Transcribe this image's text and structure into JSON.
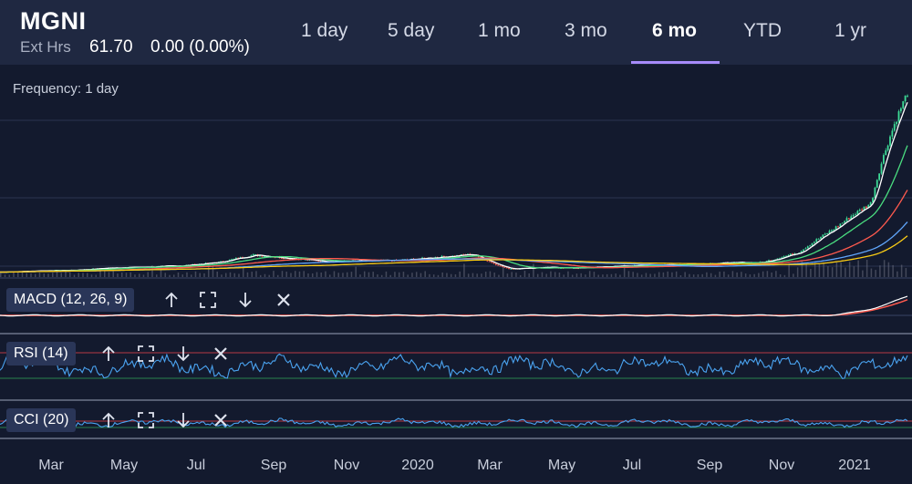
{
  "header": {
    "ticker": "MGNI",
    "ext_label": "Ext Hrs",
    "ext_price": "61.70",
    "ext_change": "0.00 (0.00%)"
  },
  "range_tabs": [
    {
      "label": "1 day"
    },
    {
      "label": "5 day"
    },
    {
      "label": "1 mo"
    },
    {
      "label": "3 mo"
    },
    {
      "label": "6 mo",
      "active": true
    },
    {
      "label": "YTD"
    },
    {
      "label": "1 yr"
    }
  ],
  "frequency_label": "Frequency: 1 day",
  "indicators": {
    "macd": "MACD (12, 26, 9)",
    "rsi": "RSI (14)",
    "cci": "CCI (20)"
  },
  "icons": [
    "arrow-up-icon",
    "expand-icon",
    "arrow-down-icon",
    "close-icon"
  ],
  "colors": {
    "background": "#131a2e",
    "header": "#1f2841",
    "accent": "#a78bfa",
    "up": "#3ddc97",
    "down": "#ff5a4e",
    "indicator_line": "#4aa3f0"
  },
  "chart_data": [
    {
      "type": "candlestick",
      "x_ticks": [
        "Mar",
        "May",
        "Jul",
        "Sep",
        "Nov",
        "2020",
        "Mar",
        "May",
        "Jul",
        "Sep",
        "Nov",
        "2021"
      ],
      "close_series": {
        "x": [
          "2019-01",
          "2019-02",
          "2019-03",
          "2019-04",
          "2019-05",
          "2019-06",
          "2019-07",
          "2019-08",
          "2019-09",
          "2019-10",
          "2019-11",
          "2019-12",
          "2020-01",
          "2020-02",
          "2020-03",
          "2020-04",
          "2020-05",
          "2020-06",
          "2020-07",
          "2020-08",
          "2020-09",
          "2020-10",
          "2020-11",
          "2020-12",
          "2021-01",
          "2021-02"
        ],
        "values": [
          2.5,
          3.0,
          3.2,
          3.8,
          4.0,
          4.3,
          5.0,
          6.5,
          5.8,
          5.2,
          5.3,
          5.4,
          6.0,
          6.6,
          3.6,
          3.9,
          3.8,
          4.2,
          4.4,
          4.6,
          4.9,
          5.0,
          7.0,
          12.0,
          18.0,
          59.0
        ]
      },
      "moving_averages": [
        {
          "color": "#ffffff"
        },
        {
          "color": "#4ade80"
        },
        {
          "color": "#ff5a4e"
        },
        {
          "color": "#60a5fa"
        },
        {
          "color": "#facc15"
        }
      ]
    },
    {
      "type": "line",
      "name": "MACD (12, 26, 9)"
    },
    {
      "type": "line",
      "name": "RSI (14)"
    },
    {
      "type": "line",
      "name": "CCI (20)"
    }
  ]
}
